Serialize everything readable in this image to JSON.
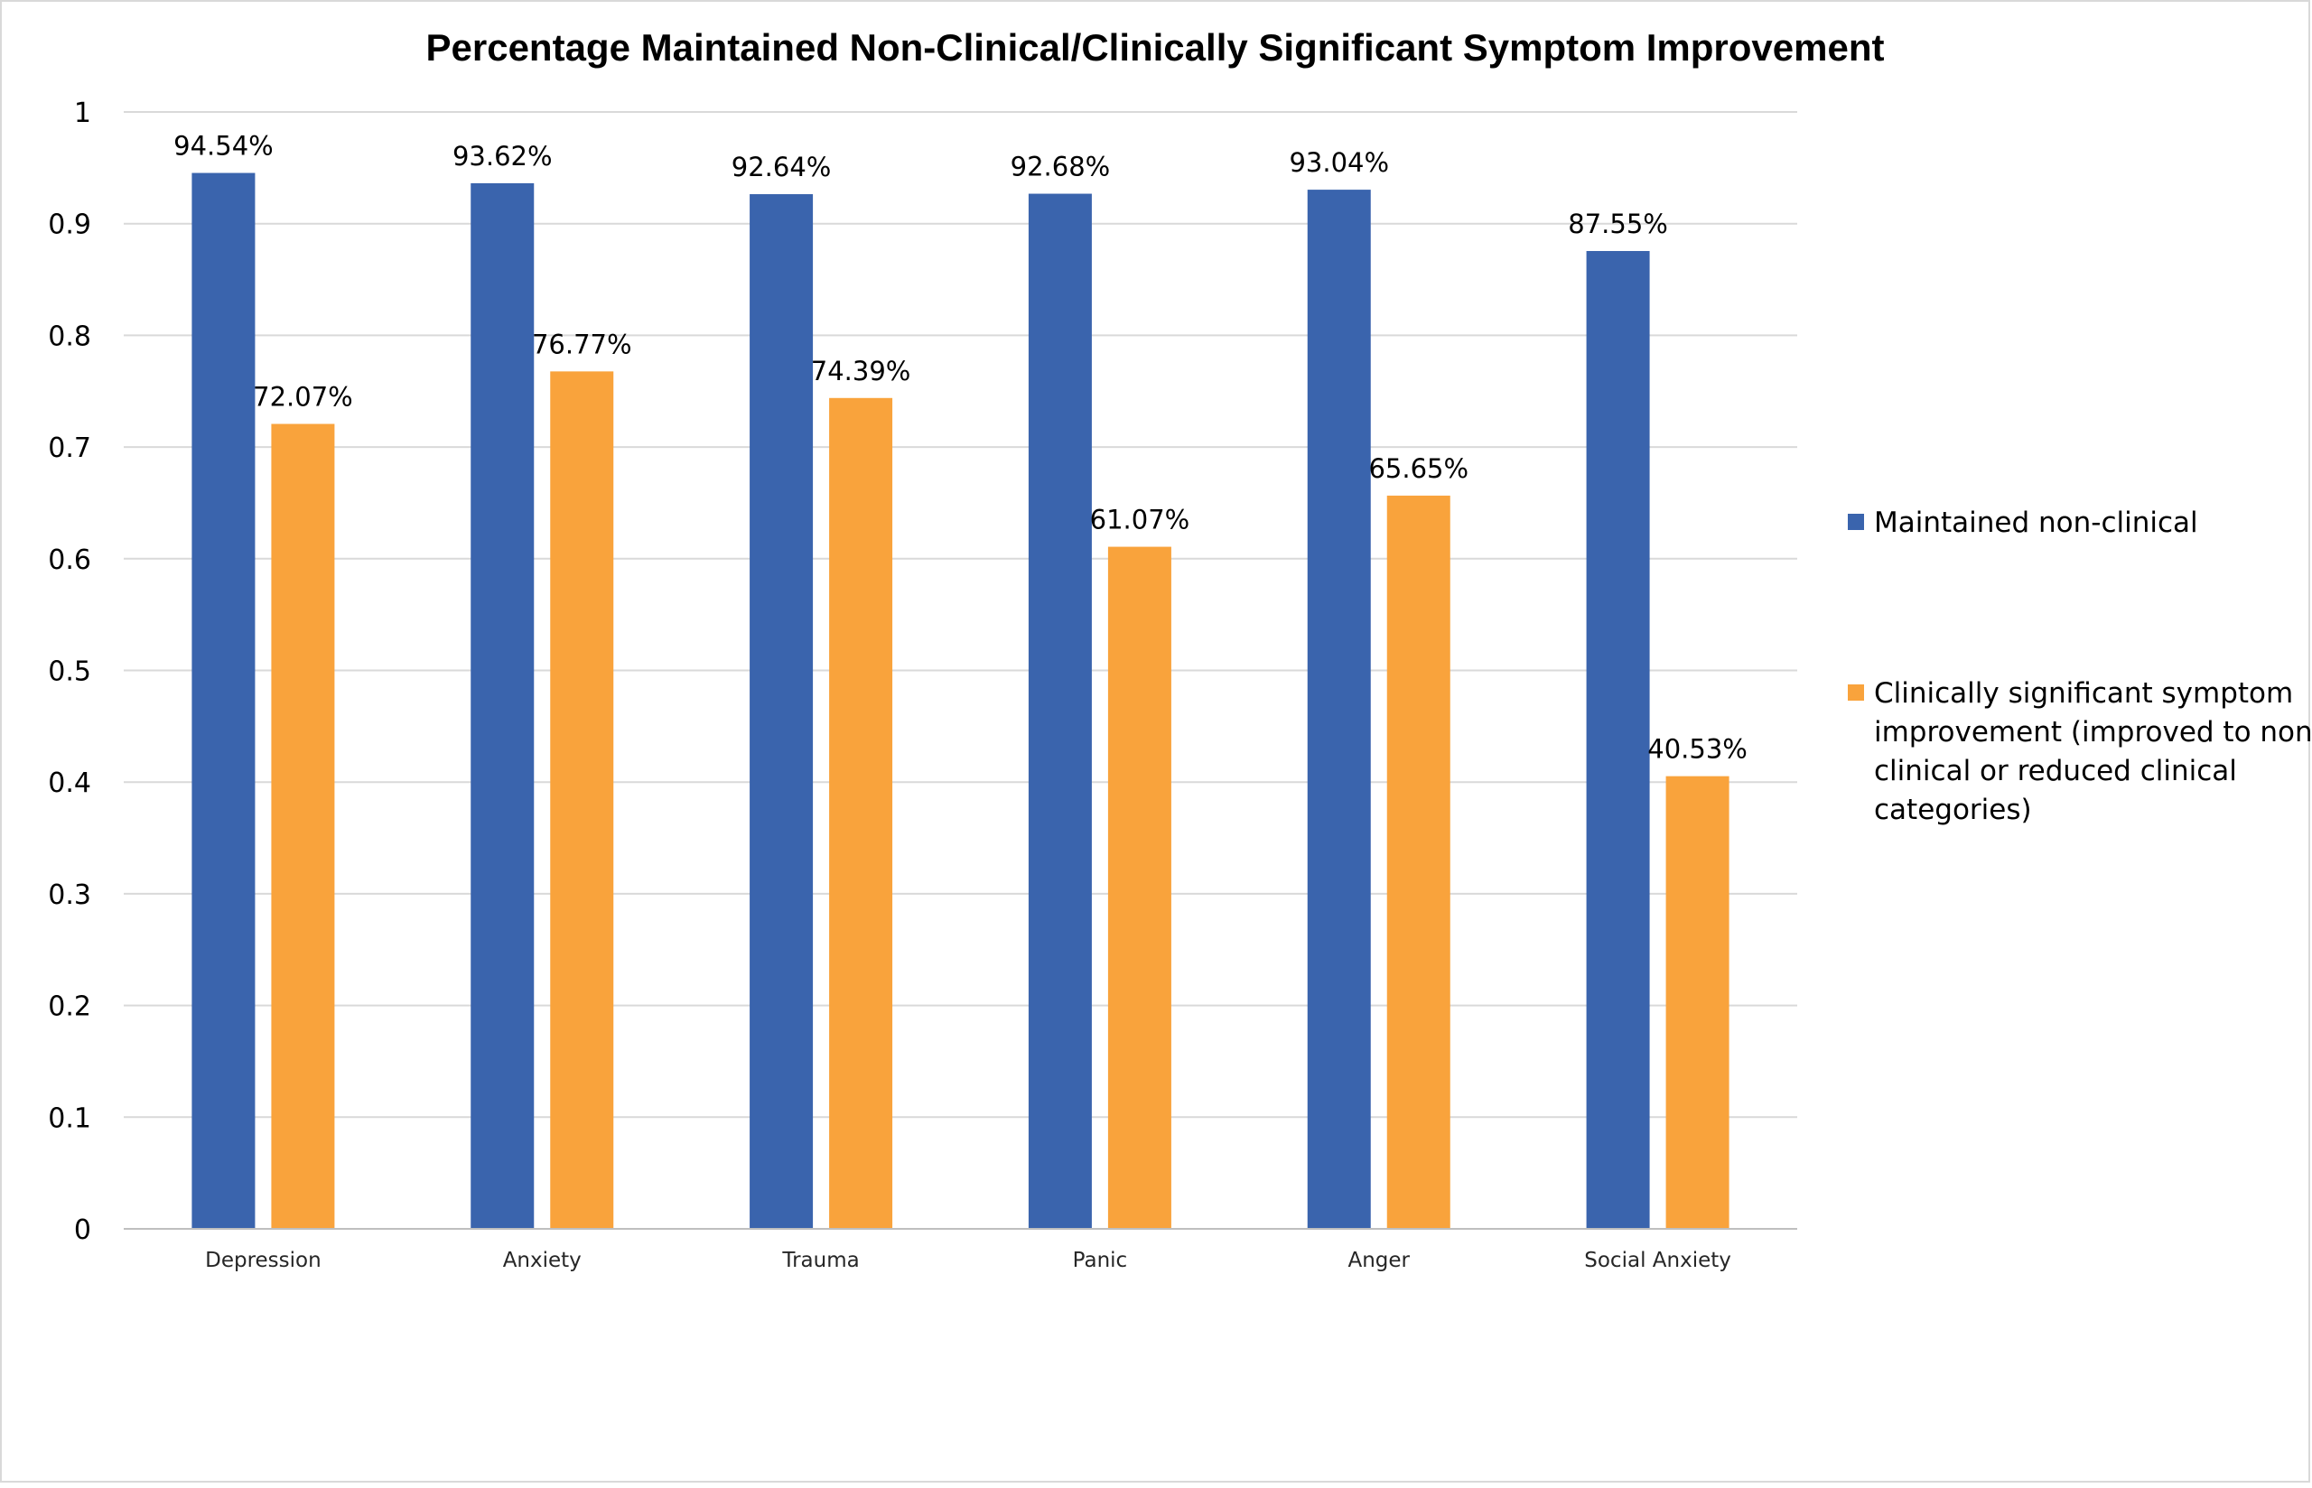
{
  "chart_data": {
    "type": "bar",
    "title": "Percentage Maintained Non-Clinical/Clinically Significant Symptom Improvement",
    "categories": [
      "Depression",
      "Anxiety",
      "Trauma",
      "Panic",
      "Anger",
      "Social Anxiety"
    ],
    "ylim": [
      0,
      1
    ],
    "yticks": [
      "0",
      "0.1",
      "0.2",
      "0.3",
      "0.4",
      "0.5",
      "0.6",
      "0.7",
      "0.8",
      "0.9",
      "1"
    ],
    "grid": true,
    "legend_position": "right",
    "series": [
      {
        "name": "Maintained non-clinical",
        "color": "#3a64ad",
        "values": [
          0.9454,
          0.9362,
          0.9264,
          0.9268,
          0.9304,
          0.8755
        ],
        "labels": [
          "94.54%",
          "93.62%",
          "92.64%",
          "92.68%",
          "93.04%",
          "87.55%"
        ]
      },
      {
        "name": "Clinically significant symptom improvement (improved to non-clinical or reduced clinical categories)",
        "legend_lines": [
          "Clinically significant symptom",
          "improvement (improved to non-",
          "clinical or reduced clinical",
          "categories)"
        ],
        "color": "#f9a33c",
        "values": [
          0.7207,
          0.7677,
          0.7439,
          0.6107,
          0.6565,
          0.4053
        ],
        "labels": [
          "72.07%",
          "76.77%",
          "74.39%",
          "61.07%",
          "65.65%",
          "40.53%"
        ]
      }
    ]
  }
}
